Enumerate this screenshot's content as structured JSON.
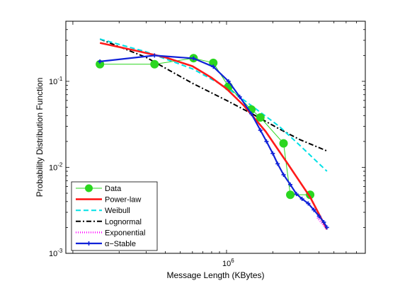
{
  "chart_data": {
    "type": "line",
    "xlabel": "Message Length (KBytes)",
    "ylabel": "Probability Distribution Function",
    "x_scale": "log",
    "y_scale": "log",
    "xlim": [
      90000,
      8000000
    ],
    "ylim": [
      0.001,
      0.5
    ],
    "x_tick_labels": [
      {
        "value": 1000000,
        "label": "10",
        "exp": "6"
      }
    ],
    "y_tick_labels": [
      {
        "value": 0.1,
        "label": "10",
        "exp": "-1"
      },
      {
        "value": 0.01,
        "label": "10",
        "exp": "-2"
      },
      {
        "value": 0.001,
        "label": "10",
        "exp": "-3"
      }
    ],
    "grid": false,
    "legend_position": "bottom-left",
    "series": [
      {
        "name": "Data",
        "color": "#2ad61f",
        "style": "markers-line",
        "x": [
          150000,
          340000,
          610000,
          820000,
          1030000,
          1450000,
          1660000,
          2350000,
          2600000,
          3500000
        ],
        "y": [
          0.158,
          0.158,
          0.186,
          0.164,
          0.087,
          0.047,
          0.038,
          0.019,
          0.0048,
          0.0048
        ]
      },
      {
        "name": "Power-law",
        "color": "#ff1a1a",
        "style": "solid-thick",
        "x": [
          150000,
          250000,
          400000,
          600000,
          800000,
          1000000,
          1300000,
          1800000,
          2500000,
          3500000,
          4500000
        ],
        "y": [
          0.28,
          0.23,
          0.19,
          0.15,
          0.11,
          0.082,
          0.052,
          0.026,
          0.011,
          0.0045,
          0.0019
        ]
      },
      {
        "name": "Weibull",
        "color": "#00e0e6",
        "style": "dashed",
        "x": [
          150000,
          300000,
          600000,
          1000000,
          1500000,
          2200000,
          3000000,
          4500000
        ],
        "y": [
          0.31,
          0.22,
          0.14,
          0.085,
          0.05,
          0.03,
          0.018,
          0.009
        ]
      },
      {
        "name": "Lognormal",
        "color": "#000000",
        "style": "dashdot",
        "x": [
          150000,
          300000,
          600000,
          1000000,
          1500000,
          2200000,
          3000000,
          4500000
        ],
        "y": [
          0.31,
          0.19,
          0.095,
          0.06,
          0.041,
          0.028,
          0.021,
          0.0155
        ]
      },
      {
        "name": "Exponential",
        "color": "#ff00ff",
        "style": "dotted",
        "x": [
          3900000,
          4500000
        ],
        "y": [
          0.0026,
          0.0019
        ]
      },
      {
        "name": "α−Stable",
        "color": "#1022d8",
        "style": "line-plus",
        "x": [
          150000,
          340000,
          610000,
          820000,
          1030000,
          1220000,
          1450000,
          1660000,
          1820000,
          2000000,
          2150000,
          2350000,
          2600000,
          2850000,
          3100000,
          3400000,
          3700000,
          4000000,
          4300000,
          4500000
        ],
        "y": [
          0.17,
          0.2,
          0.185,
          0.148,
          0.1,
          0.066,
          0.042,
          0.027,
          0.02,
          0.0145,
          0.011,
          0.0082,
          0.0063,
          0.0049,
          0.0043,
          0.0038,
          0.0032,
          0.0027,
          0.0023,
          0.002
        ]
      }
    ]
  }
}
